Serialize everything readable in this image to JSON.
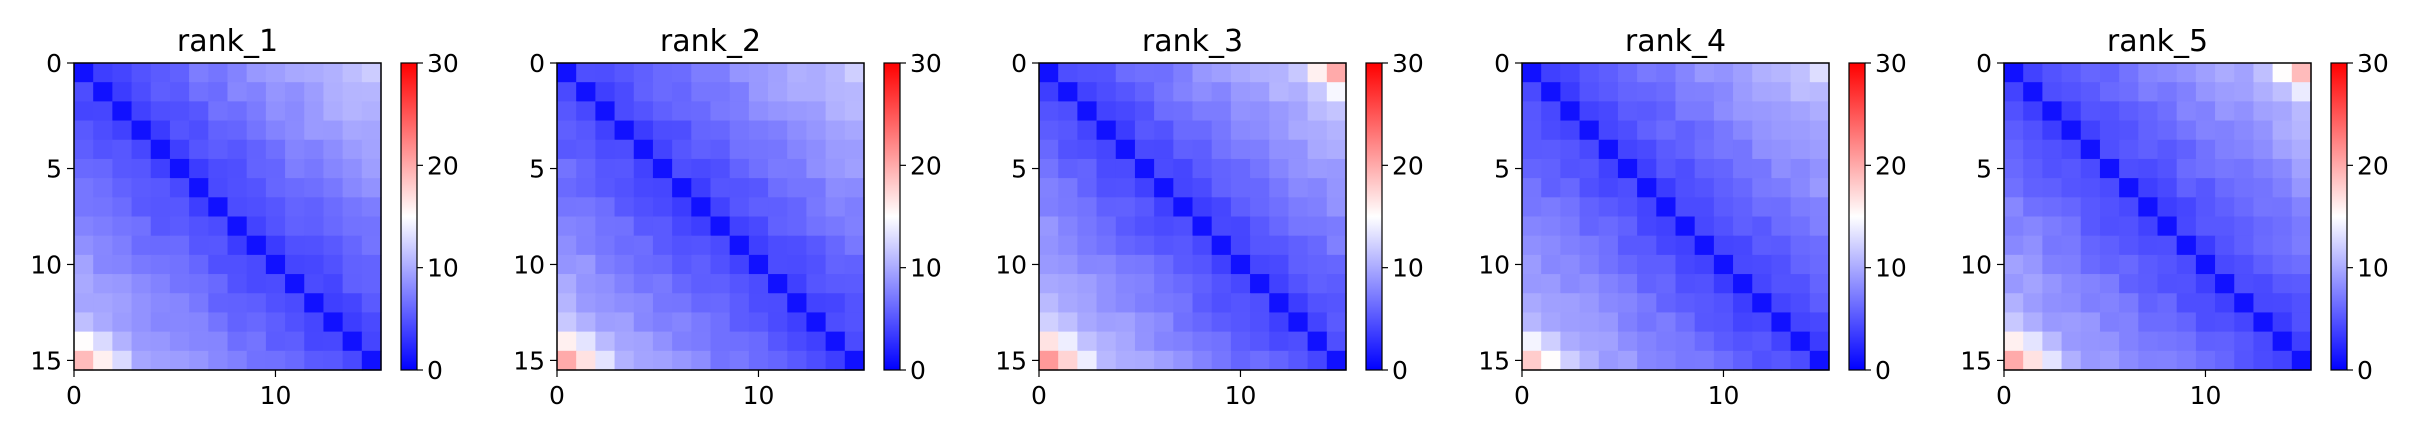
{
  "chart_data": [
    {
      "type": "heatmap",
      "title": "rank_1",
      "size": 16,
      "xticks": [
        "0",
        "10"
      ],
      "yticks": [
        "0",
        "5",
        "10",
        "15"
      ],
      "colorbar": {
        "min": 0,
        "max": 30,
        "ticks": [
          "0",
          "10",
          "20",
          "30"
        ],
        "colormap": "bwr"
      },
      "base": 3.5,
      "slope": 0.55,
      "corner_top_right": 12,
      "corner_bottom_left": 19
    },
    {
      "type": "heatmap",
      "title": "rank_2",
      "size": 16,
      "xticks": [
        "0",
        "10"
      ],
      "yticks": [
        "0",
        "5",
        "10",
        "15"
      ],
      "colorbar": {
        "min": 0,
        "max": 30,
        "ticks": [
          "0",
          "10",
          "20",
          "30"
        ],
        "colormap": "bwr"
      },
      "base": 3.5,
      "slope": 0.55,
      "corner_top_right": 12,
      "corner_bottom_left": 20
    },
    {
      "type": "heatmap",
      "title": "rank_3",
      "size": 16,
      "xticks": [
        "0",
        "10"
      ],
      "yticks": [
        "0",
        "5",
        "10",
        "15"
      ],
      "colorbar": {
        "min": 0,
        "max": 30,
        "ticks": [
          "0",
          "10",
          "20",
          "30"
        ],
        "colormap": "bwr"
      },
      "base": 3.5,
      "slope": 0.6,
      "corner_top_right": 20,
      "corner_bottom_left": 21
    },
    {
      "type": "heatmap",
      "title": "rank_4",
      "size": 16,
      "xticks": [
        "0",
        "10"
      ],
      "yticks": [
        "0",
        "5",
        "10",
        "15"
      ],
      "colorbar": {
        "min": 0,
        "max": 30,
        "ticks": [
          "0",
          "10",
          "20",
          "30"
        ],
        "colormap": "bwr"
      },
      "base": 3.5,
      "slope": 0.55,
      "corner_top_right": 13,
      "corner_bottom_left": 18
    },
    {
      "type": "heatmap",
      "title": "rank_5",
      "size": 16,
      "xticks": [
        "0",
        "10"
      ],
      "yticks": [
        "0",
        "5",
        "10",
        "15"
      ],
      "colorbar": {
        "min": 0,
        "max": 30,
        "ticks": [
          "0",
          "10",
          "20",
          "30"
        ],
        "colormap": "bwr"
      },
      "base": 3.5,
      "slope": 0.55,
      "corner_top_right": 19,
      "corner_bottom_left": 20
    }
  ]
}
